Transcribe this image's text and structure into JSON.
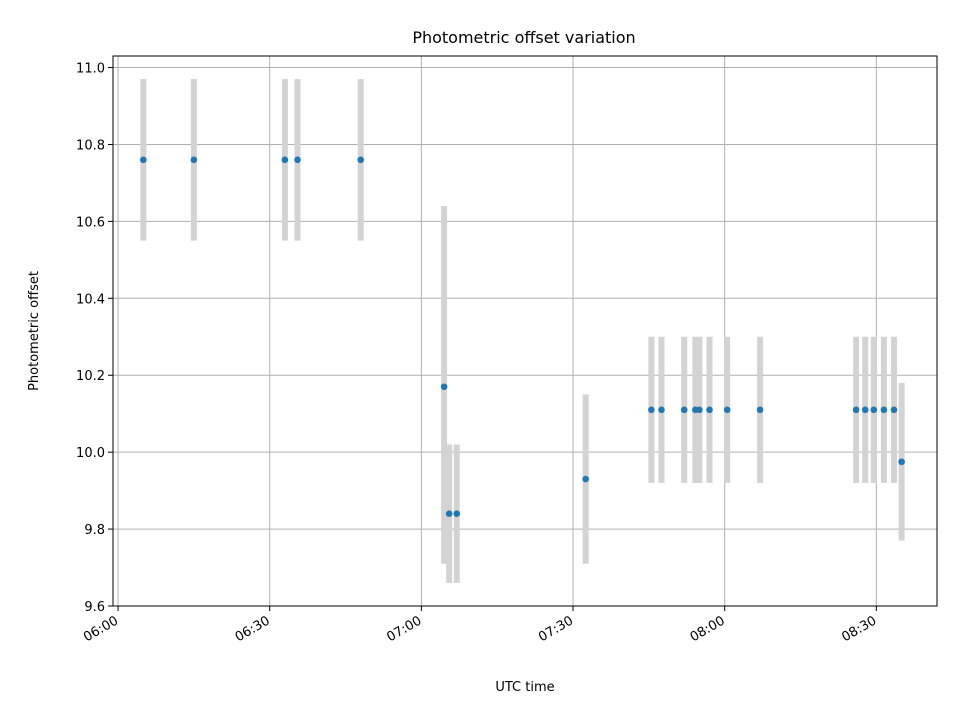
{
  "chart_data": {
    "type": "scatter",
    "title": "Photometric offset variation",
    "xlabel": "UTC time",
    "ylabel": "Photometric offset",
    "xlim": [
      "05:59",
      "08:42"
    ],
    "ylim": [
      9.6,
      11.03
    ],
    "x_ticks": [
      "06:00",
      "06:30",
      "07:00",
      "07:30",
      "08:00",
      "08:30"
    ],
    "y_ticks": [
      "9.6",
      "9.8",
      "10.0",
      "10.2",
      "10.4",
      "10.6",
      "10.8",
      "11.0"
    ],
    "grid": true,
    "colors": {
      "point": "#1f77b4",
      "errorbar": "#d3d3d3"
    },
    "series": [
      {
        "points": [
          {
            "x": "06:05",
            "y": 10.76,
            "ylow": 10.55,
            "yhigh": 10.97
          },
          {
            "x": "06:15",
            "y": 10.76,
            "ylow": 10.55,
            "yhigh": 10.97
          },
          {
            "x": "06:33",
            "y": 10.76,
            "ylow": 10.55,
            "yhigh": 10.97
          },
          {
            "x": "06:35.5",
            "y": 10.76,
            "ylow": 10.55,
            "yhigh": 10.97
          },
          {
            "x": "06:48",
            "y": 10.76,
            "ylow": 10.55,
            "yhigh": 10.97
          },
          {
            "x": "07:04.5",
            "y": 10.17,
            "ylow": 9.71,
            "yhigh": 10.64
          },
          {
            "x": "07:05.5",
            "y": 9.84,
            "ylow": 9.66,
            "yhigh": 10.02
          },
          {
            "x": "07:07",
            "y": 9.84,
            "ylow": 9.66,
            "yhigh": 10.02
          },
          {
            "x": "07:32.5",
            "y": 9.93,
            "ylow": 9.71,
            "yhigh": 10.15
          },
          {
            "x": "07:45.5",
            "y": 10.11,
            "ylow": 9.92,
            "yhigh": 10.3
          },
          {
            "x": "07:47.5",
            "y": 10.11,
            "ylow": 9.92,
            "yhigh": 10.3
          },
          {
            "x": "07:52",
            "y": 10.11,
            "ylow": 9.92,
            "yhigh": 10.3
          },
          {
            "x": "07:54.2",
            "y": 10.11,
            "ylow": 9.92,
            "yhigh": 10.3
          },
          {
            "x": "07:55",
            "y": 10.11,
            "ylow": 9.92,
            "yhigh": 10.3
          },
          {
            "x": "07:57",
            "y": 10.11,
            "ylow": 9.92,
            "yhigh": 10.3
          },
          {
            "x": "08:00.5",
            "y": 10.11,
            "ylow": 9.92,
            "yhigh": 10.3
          },
          {
            "x": "08:07",
            "y": 10.11,
            "ylow": 9.92,
            "yhigh": 10.3
          },
          {
            "x": "08:26",
            "y": 10.11,
            "ylow": 9.92,
            "yhigh": 10.3
          },
          {
            "x": "08:27.8",
            "y": 10.11,
            "ylow": 9.92,
            "yhigh": 10.3
          },
          {
            "x": "08:29.5",
            "y": 10.11,
            "ylow": 9.92,
            "yhigh": 10.3
          },
          {
            "x": "08:31.5",
            "y": 10.11,
            "ylow": 9.92,
            "yhigh": 10.3
          },
          {
            "x": "08:33.5",
            "y": 10.11,
            "ylow": 9.92,
            "yhigh": 10.3
          },
          {
            "x": "08:35",
            "y": 9.975,
            "ylow": 9.77,
            "yhigh": 10.18
          }
        ]
      }
    ]
  }
}
